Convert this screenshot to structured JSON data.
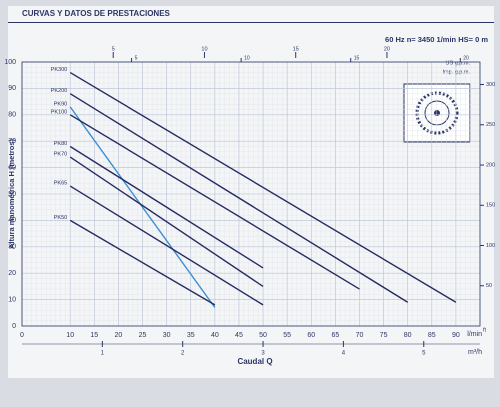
{
  "chart_data": {
    "type": "line",
    "title": "CURVAS Y DATOS DE PRESTACIONES",
    "subtitle": "60 Hz   n= 3450 1/min   HS= 0 m",
    "ylabel": "Altura manométrica  H  (metros)",
    "xlabel": "Caudal  Q",
    "xunit": "l/min",
    "x2unit": "US g.p.m.",
    "x3unit": "Imp. g.p.m.",
    "x4unit": "m³/h",
    "y2unit": "ft",
    "xlim": [
      0,
      95
    ],
    "xticks": [
      0,
      10,
      15,
      20,
      25,
      30,
      35,
      40,
      45,
      50,
      55,
      60,
      65,
      70,
      75,
      80,
      85,
      90
    ],
    "ylim": [
      0,
      100
    ],
    "yticks": [
      0,
      10,
      20,
      30,
      40,
      50,
      60,
      70,
      80,
      90,
      100
    ],
    "x2lim": [
      0,
      25.1
    ],
    "x2ticks": [
      5,
      10,
      15,
      20
    ],
    "x3lim": [
      0,
      20.9
    ],
    "x3ticks": [
      5,
      10,
      15,
      20
    ],
    "x4lim": [
      0,
      5.7
    ],
    "x4ticks": [
      1,
      2,
      3,
      4,
      5
    ],
    "y2lim": [
      0,
      328
    ],
    "y2ticks": [
      50,
      100,
      150,
      200,
      250,
      300
    ],
    "grid": true,
    "series": [
      {
        "name": "PK300",
        "color": "#262c63",
        "x": [
          10,
          90
        ],
        "values": [
          96,
          9
        ]
      },
      {
        "name": "PK200",
        "color": "#262c63",
        "x": [
          10,
          80
        ],
        "values": [
          88,
          9
        ]
      },
      {
        "name": "PK90",
        "color": "#3b8fd2",
        "x": [
          10,
          40
        ],
        "values": [
          83,
          7
        ]
      },
      {
        "name": "PK100",
        "color": "#262c63",
        "x": [
          10,
          70
        ],
        "values": [
          80,
          14
        ]
      },
      {
        "name": "PK80",
        "color": "#262c63",
        "x": [
          10,
          50
        ],
        "values": [
          68,
          22
        ]
      },
      {
        "name": "PK70",
        "color": "#262c63",
        "x": [
          10,
          50
        ],
        "values": [
          64,
          15
        ]
      },
      {
        "name": "PK65",
        "color": "#262c63",
        "x": [
          10,
          50
        ],
        "values": [
          53,
          8
        ]
      },
      {
        "name": "PK50",
        "color": "#262c63",
        "x": [
          10,
          40
        ],
        "values": [
          40,
          8
        ]
      }
    ]
  }
}
